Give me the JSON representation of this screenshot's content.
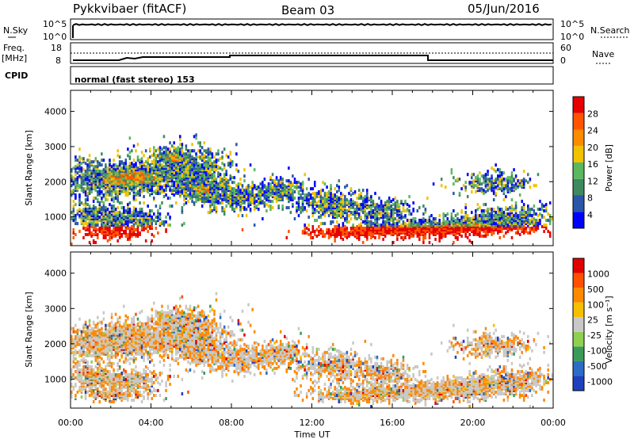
{
  "header": {
    "title": "Pykkvibaer (fitACF)",
    "beam": "Beam 03",
    "date": "05/Jun/2016"
  },
  "side_labels": {
    "nsky": "N.Sky",
    "nsearch": "N.Search",
    "freq": "Freq.",
    "freq_unit": "[MHz]",
    "nave": "Nave",
    "cpid": "CPID",
    "cpid_text": "normal (fast stereo) 153"
  },
  "noise_panel": {
    "left_ticks": [
      "10^5",
      "10^0"
    ],
    "right_ticks": [
      "10^5",
      "10^0"
    ]
  },
  "freq_panel": {
    "left_ticks": [
      "18",
      "8"
    ],
    "right_ticks": [
      "60",
      "0"
    ]
  },
  "colors": {
    "power": [
      "#0000ff",
      "#2a55a8",
      "#3e8a5e",
      "#5cb85c",
      "#f2c200",
      "#ff8c00",
      "#ff5500",
      "#e60000"
    ],
    "velocity": [
      "#1f3fbf",
      "#2b6cc4",
      "#3a9a5a",
      "#8fd14f",
      "#c8c8c8",
      "#f5c000",
      "#ff8800",
      "#ff5000",
      "#e00000"
    ]
  },
  "chart_data": [
    {
      "type": "heatmap",
      "name": "power",
      "ylabel": "Slant Range [km]",
      "yticks": [
        "4000",
        "3000",
        "2000",
        "1000"
      ],
      "xticks": [
        "00:00",
        "04:00",
        "08:00",
        "12:00",
        "16:00",
        "20:00",
        "00:00"
      ],
      "ylim": [
        180,
        4600
      ],
      "xlim_hours": [
        0,
        24
      ],
      "colorbar": {
        "label": "Power [dB]",
        "ticks": [
          "28",
          "24",
          "20",
          "16",
          "12",
          "8",
          "4"
        ]
      }
    },
    {
      "type": "heatmap",
      "name": "velocity",
      "ylabel": "Slant Range [km]",
      "yticks": [
        "4000",
        "3000",
        "2000",
        "1000"
      ],
      "xticks": [
        "00:00",
        "04:00",
        "08:00",
        "12:00",
        "16:00",
        "20:00",
        "00:00"
      ],
      "xlabel": "Time UT",
      "ylim": [
        180,
        4600
      ],
      "xlim_hours": [
        0,
        24
      ],
      "colorbar": {
        "label": "Velocity [m s⁻¹]",
        "ticks": [
          "1000",
          "500",
          "100",
          "25",
          "-25",
          "-100",
          "-500",
          "-1000"
        ]
      }
    }
  ]
}
